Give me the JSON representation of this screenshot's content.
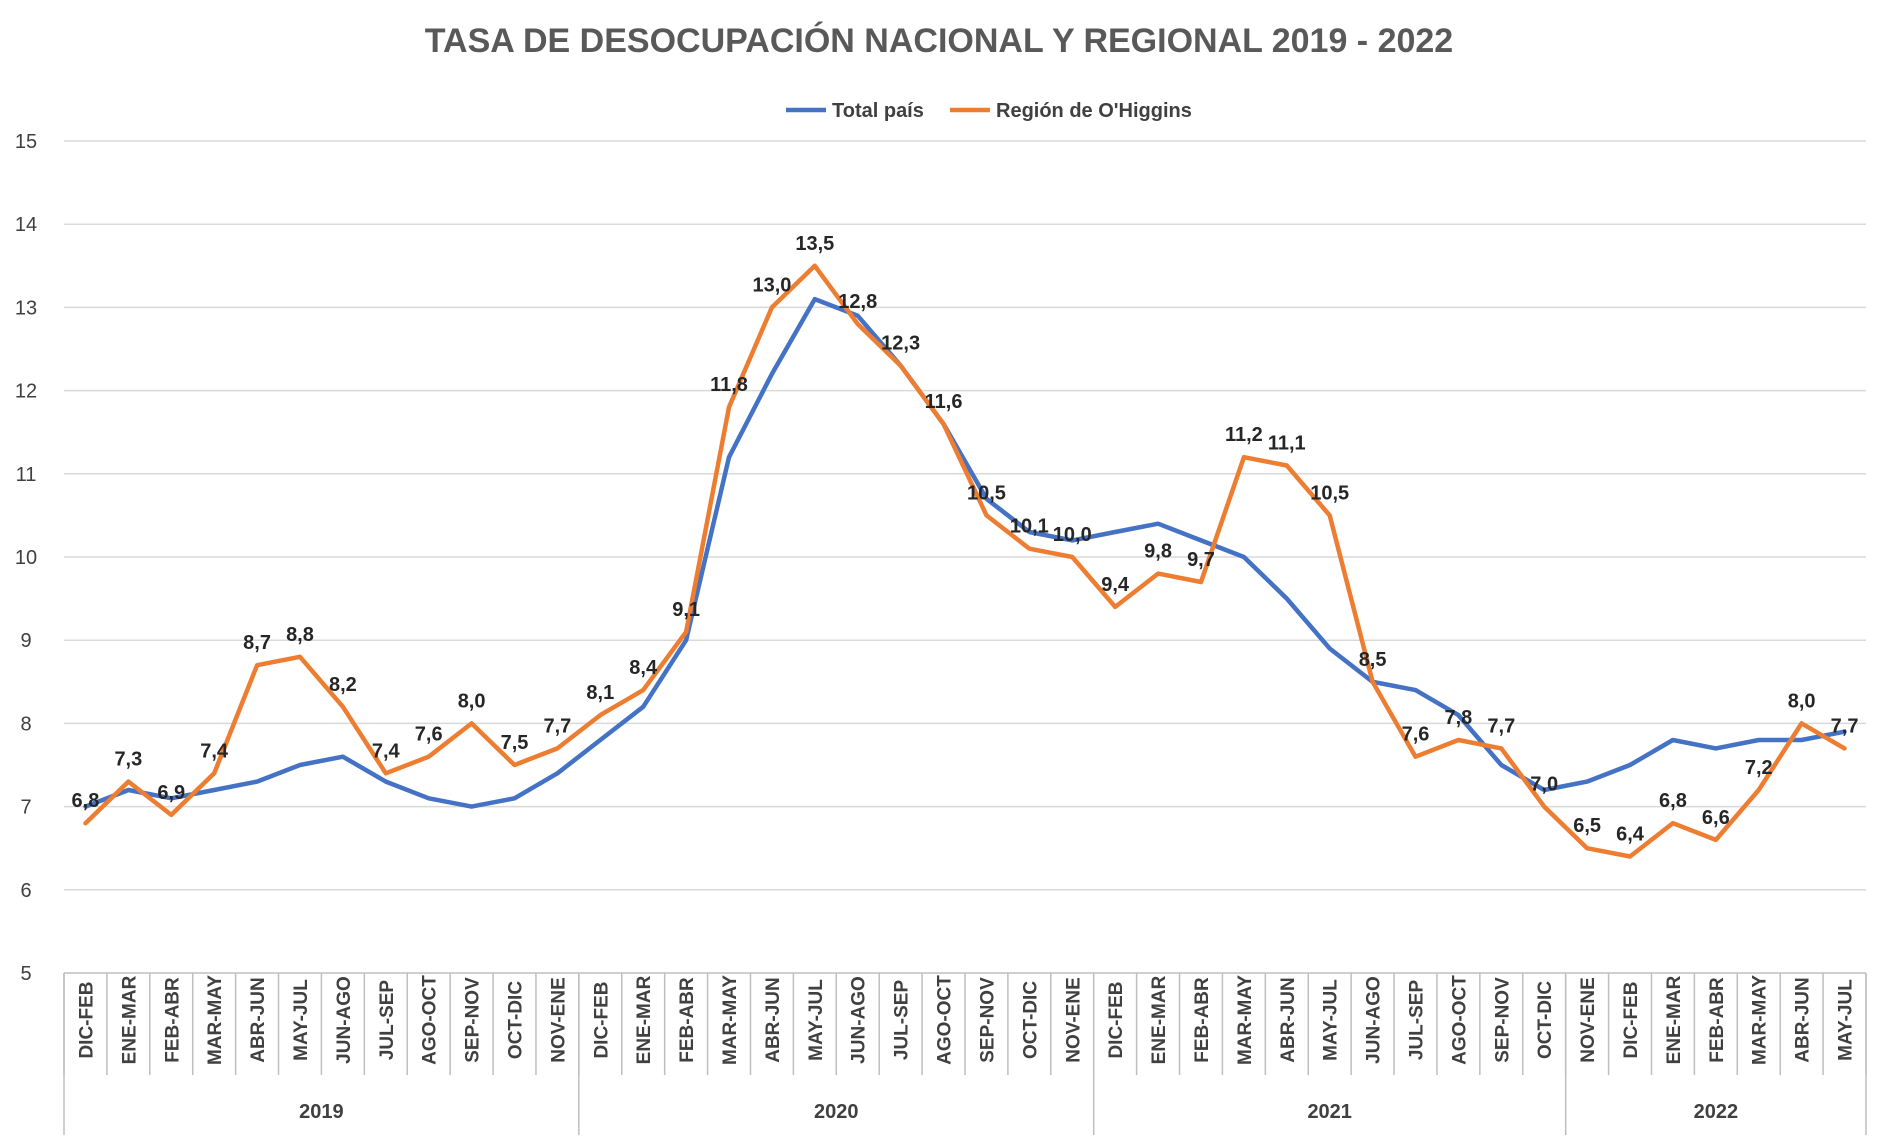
{
  "chart_data": {
    "type": "line",
    "title": "TASA DE DESOCUPACIÓN NACIONAL Y REGIONAL 2019 - 2022",
    "ylim": [
      5,
      15
    ],
    "yticks": [
      5,
      6,
      7,
      8,
      9,
      10,
      11,
      12,
      13,
      14,
      15
    ],
    "legend_position": "top-center",
    "grid": true,
    "categories": [
      "DIC-FEB",
      "ENE-MAR",
      "FEB-ABR",
      "MAR-MAY",
      "ABR-JUN",
      "MAY-JUL",
      "JUN-AGO",
      "JUL-SEP",
      "AGO-OCT",
      "SEP-NOV",
      "OCT-DIC",
      "NOV-ENE",
      "DIC-FEB",
      "ENE-MAR",
      "FEB-ABR",
      "MAR-MAY",
      "ABR-JUN",
      "MAY-JUL",
      "JUN-AGO",
      "JUL-SEP",
      "AGO-OCT",
      "SEP-NOV",
      "OCT-DIC",
      "NOV-ENE",
      "DIC-FEB",
      "ENE-MAR",
      "FEB-ABR",
      "MAR-MAY",
      "ABR-JUN",
      "MAY-JUL",
      "JUN-AGO",
      "JUL-SEP",
      "AGO-OCT",
      "SEP-NOV",
      "OCT-DIC",
      "NOV-ENE",
      "DIC-FEB",
      "ENE-MAR",
      "FEB-ABR",
      "MAR-MAY",
      "ABR-JUN",
      "MAY-JUL"
    ],
    "groups": [
      {
        "label": "2019",
        "start": 0,
        "count": 12
      },
      {
        "label": "2020",
        "start": 12,
        "count": 12
      },
      {
        "label": "2021",
        "start": 24,
        "count": 11
      },
      {
        "label": "2022",
        "start": 35,
        "count": 7
      }
    ],
    "series": [
      {
        "name": "Total país",
        "color": "#4472C4",
        "values": [
          7.0,
          7.2,
          7.1,
          7.2,
          7.3,
          7.5,
          7.6,
          7.3,
          7.1,
          7.0,
          7.1,
          7.4,
          7.8,
          8.2,
          9.0,
          11.2,
          12.2,
          13.1,
          12.9,
          12.3,
          11.6,
          10.7,
          10.3,
          10.2,
          10.3,
          10.4,
          10.2,
          10.0,
          9.5,
          8.9,
          8.5,
          8.4,
          8.1,
          7.5,
          7.2,
          7.3,
          7.5,
          7.8,
          7.7,
          7.8,
          7.8,
          7.9
        ],
        "show_labels": false
      },
      {
        "name": "Región de O'Higgins",
        "color": "#ED7D31",
        "values": [
          6.8,
          7.3,
          6.9,
          7.4,
          8.7,
          8.8,
          8.2,
          7.4,
          7.6,
          8.0,
          7.5,
          7.7,
          8.1,
          8.4,
          9.1,
          11.8,
          13.0,
          13.5,
          12.8,
          12.3,
          11.6,
          10.5,
          10.1,
          10.0,
          9.4,
          9.8,
          9.7,
          11.2,
          11.1,
          10.5,
          8.5,
          7.6,
          7.8,
          7.7,
          7.0,
          6.5,
          6.4,
          6.8,
          6.6,
          7.2,
          8.0,
          7.7
        ],
        "data_labels": [
          "6,8",
          "7,3",
          "6,9",
          "7,4",
          "8,7",
          "8,8",
          "8,2",
          "7,4",
          "7,6",
          "8,0",
          "7,5",
          "7,7",
          "8,1",
          "8,4",
          "9,1",
          "11,8",
          "13,0",
          "13,5",
          "12,8",
          "12,3",
          "11,6",
          "10,5",
          "10,1",
          "10,0",
          "9,4",
          "9,8",
          "9,7",
          "11,2",
          "11,1",
          "10,5",
          "8,5",
          "7,6",
          "7,8",
          "7,7",
          "7,0",
          "6,5",
          "6,4",
          "6,8",
          "6,6",
          "7,2",
          "8,0",
          "7,7"
        ],
        "show_labels": true
      }
    ]
  }
}
